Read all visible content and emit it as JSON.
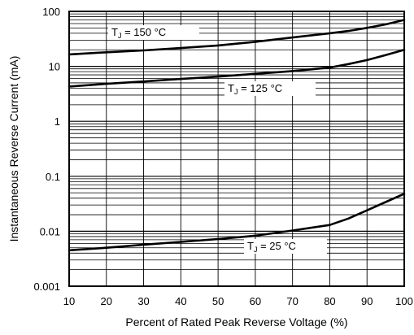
{
  "chart_data": {
    "type": "line",
    "title": "",
    "xlabel": "Percent of Rated Peak Reverse Voltage (%)",
    "ylabel": "Instantaneous Reverse Current (mA)",
    "xlim": [
      10,
      100
    ],
    "ylim": [
      0.001,
      100
    ],
    "yscale": "log",
    "grid": true,
    "x_ticks": [
      "10",
      "20",
      "30",
      "40",
      "50",
      "60",
      "70",
      "80",
      "90",
      "100"
    ],
    "y_ticks": [
      "0.001",
      "0.01",
      "0.1",
      "1",
      "10",
      "100"
    ],
    "x": [
      10,
      20,
      30,
      40,
      50,
      60,
      70,
      80,
      85,
      90,
      95,
      100
    ],
    "series": [
      {
        "name": "",
        "label_parts": [
          "T",
          "J",
          " = 150 °C"
        ],
        "values": [
          16.5,
          18,
          19.5,
          21.5,
          24,
          28,
          33.5,
          40,
          44,
          50,
          58,
          70
        ]
      },
      {
        "name": "",
        "label_parts": [
          "T",
          "J",
          " = 125 °C"
        ],
        "values": [
          4.3,
          4.8,
          5.3,
          5.9,
          6.5,
          7.3,
          8.2,
          9.5,
          11,
          13,
          16,
          20
        ]
      },
      {
        "name": "",
        "label_parts": [
          "T",
          "J",
          " = 25 °C"
        ],
        "values": [
          0.0045,
          0.005,
          0.0057,
          0.0064,
          0.0072,
          0.0083,
          0.0103,
          0.013,
          0.017,
          0.024,
          0.034,
          0.048
        ]
      }
    ]
  }
}
